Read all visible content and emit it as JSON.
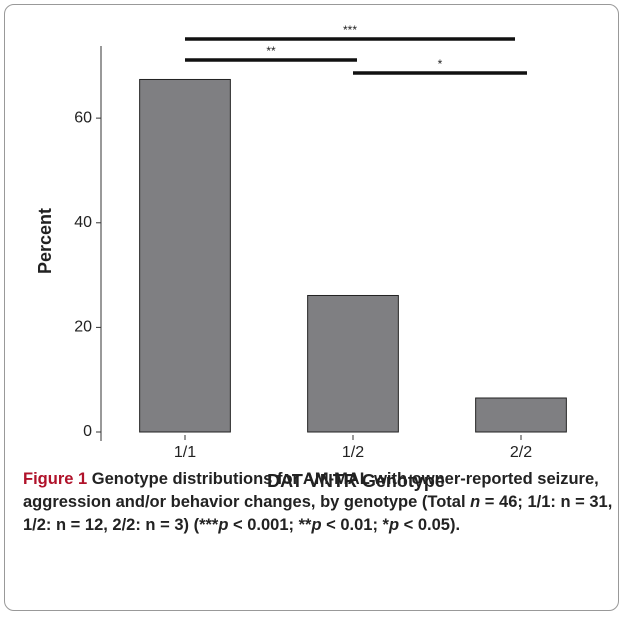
{
  "chart_data": {
    "type": "bar",
    "categories": [
      "1/1",
      "1/2",
      "2/2"
    ],
    "values": [
      67.4,
      26.1,
      6.5
    ],
    "color": "#7f7f82",
    "ylim": [
      0,
      73.8
    ],
    "yticks": [
      0,
      20,
      40,
      60
    ],
    "ylabel": "Percent",
    "xlabel": "DAT VNTR Genotype",
    "annotations": [
      "***",
      "**",
      "*"
    ]
  },
  "caption": {
    "label": "Figure 1",
    "parts": [
      " Genotype distributions for AM-MAL with owner-reported seizure, aggression and/or behavior changes, by genotype (Total ",
      "n",
      " = 46; 1/1: n = 31, 1/2: n = 12, 2/2: n = 3) (***",
      "p",
      " < 0.001; **",
      "p",
      " < 0.01; *",
      "p",
      " < 0.05)."
    ]
  }
}
